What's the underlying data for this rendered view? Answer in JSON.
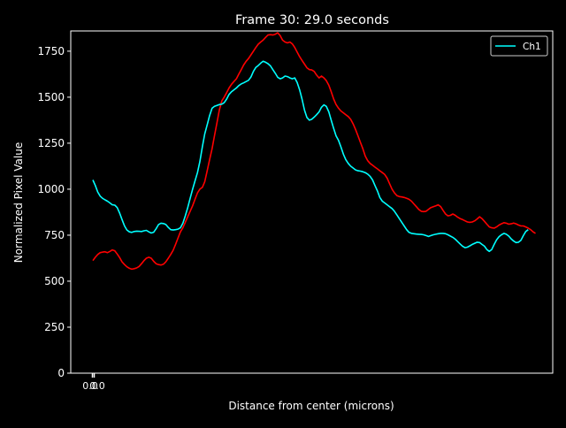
{
  "chart_data": {
    "type": "line",
    "title": "Frame 30: 29.0 seconds",
    "xlabel": "Distance from center (microns)",
    "ylabel": "Normalized Pixel Value",
    "ylim": [
      0,
      1860
    ],
    "yticks": [
      0,
      250,
      500,
      750,
      1000,
      1250,
      1500,
      1750
    ],
    "xtick_label": "0.0",
    "grid": false,
    "legend_position": "top-right",
    "background": "#000000",
    "foreground": "#ffffff",
    "x_count": 181,
    "series": [
      {
        "name": "Ch1",
        "color": "#00ffff",
        "values": [
          1050,
          1020,
          985,
          962,
          950,
          942,
          935,
          925,
          915,
          913,
          900,
          870,
          835,
          800,
          778,
          768,
          765,
          770,
          772,
          771,
          770,
          774,
          776,
          768,
          762,
          766,
          785,
          808,
          815,
          813,
          808,
          792,
          780,
          778,
          780,
          783,
          790,
          815,
          855,
          900,
          950,
          1000,
          1045,
          1090,
          1150,
          1230,
          1300,
          1350,
          1400,
          1440,
          1450,
          1455,
          1460,
          1462,
          1470,
          1490,
          1515,
          1530,
          1540,
          1550,
          1563,
          1572,
          1578,
          1585,
          1592,
          1610,
          1640,
          1662,
          1672,
          1685,
          1695,
          1690,
          1682,
          1670,
          1650,
          1630,
          1608,
          1600,
          1605,
          1615,
          1612,
          1605,
          1600,
          1605,
          1580,
          1540,
          1490,
          1430,
          1390,
          1375,
          1380,
          1392,
          1405,
          1420,
          1445,
          1458,
          1450,
          1420,
          1375,
          1330,
          1290,
          1265,
          1230,
          1190,
          1160,
          1140,
          1125,
          1115,
          1105,
          1100,
          1098,
          1095,
          1090,
          1082,
          1070,
          1050,
          1020,
          990,
          955,
          935,
          925,
          915,
          905,
          895,
          880,
          860,
          840,
          820,
          800,
          780,
          765,
          760,
          758,
          756,
          755,
          754,
          752,
          748,
          743,
          748,
          752,
          755,
          758,
          760,
          760,
          758,
          752,
          745,
          738,
          728,
          715,
          702,
          690,
          682,
          685,
          692,
          700,
          706,
          712,
          710,
          700,
          690,
          672,
          662,
          672,
          700,
          725,
          742,
          752,
          760,
          755,
          745,
          730,
          718,
          710,
          712,
          722,
          748,
          770,
          780
        ]
      },
      {
        "name": "",
        "color": "#ff0000",
        "values": [
          612,
          630,
          645,
          655,
          658,
          660,
          655,
          662,
          670,
          665,
          648,
          628,
          605,
          590,
          578,
          570,
          565,
          568,
          572,
          580,
          595,
          612,
          625,
          630,
          625,
          608,
          595,
          590,
          588,
          592,
          605,
          625,
          645,
          668,
          700,
          735,
          768,
          790,
          820,
          850,
          880,
          910,
          945,
          980,
          1000,
          1010,
          1040,
          1100,
          1160,
          1220,
          1290,
          1360,
          1430,
          1480,
          1500,
          1525,
          1550,
          1570,
          1585,
          1600,
          1625,
          1650,
          1675,
          1695,
          1710,
          1730,
          1750,
          1770,
          1788,
          1800,
          1810,
          1825,
          1838,
          1840,
          1838,
          1842,
          1850,
          1835,
          1810,
          1800,
          1795,
          1800,
          1790,
          1770,
          1745,
          1720,
          1700,
          1680,
          1660,
          1650,
          1648,
          1640,
          1620,
          1605,
          1615,
          1605,
          1590,
          1565,
          1530,
          1490,
          1460,
          1440,
          1425,
          1415,
          1405,
          1395,
          1380,
          1355,
          1325,
          1290,
          1255,
          1220,
          1180,
          1155,
          1140,
          1130,
          1120,
          1110,
          1100,
          1090,
          1080,
          1060,
          1030,
          1000,
          980,
          965,
          960,
          958,
          955,
          950,
          945,
          935,
          920,
          905,
          890,
          880,
          878,
          880,
          890,
          900,
          905,
          910,
          915,
          905,
          885,
          865,
          855,
          858,
          865,
          858,
          848,
          840,
          835,
          828,
          822,
          820,
          822,
          828,
          838,
          850,
          840,
          825,
          810,
          795,
          790,
          788,
          795,
          805,
          812,
          818,
          815,
          810,
          812,
          816,
          812,
          805,
          800,
          800,
          795,
          788,
          780,
          768,
          760
        ]
      }
    ]
  }
}
